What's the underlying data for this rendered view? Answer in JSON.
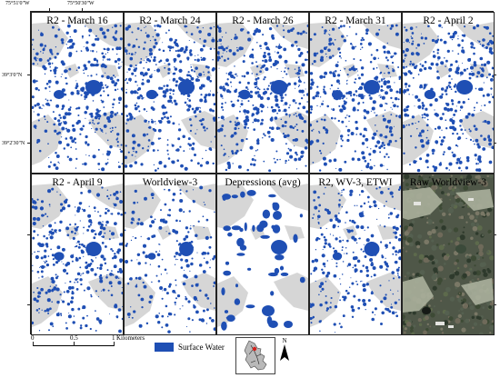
{
  "coordinates": {
    "top": [
      "75°51'0\"W",
      "75°50'30\"W"
    ],
    "left": [
      "39°3'0\"N",
      "39°2'30\"N"
    ]
  },
  "panels": [
    {
      "title": "R2 - March 16",
      "kind": "water",
      "density": 1.0
    },
    {
      "title": "R2 - March 24",
      "kind": "water",
      "density": 1.05
    },
    {
      "title": "R2 - March 26",
      "kind": "water",
      "density": 1.1
    },
    {
      "title": "R2 - March 31",
      "kind": "water",
      "density": 1.0
    },
    {
      "title": "R2 - April 2",
      "kind": "water",
      "density": 1.05
    },
    {
      "title": "R2 - April 9",
      "kind": "water",
      "density": 0.9
    },
    {
      "title": "Worldview-3",
      "kind": "water",
      "density": 0.6
    },
    {
      "title": "Depressions (avg)",
      "kind": "depressions",
      "density": 0.4
    },
    {
      "title": "R2, WV-3, ETWI",
      "kind": "water",
      "density": 0.8
    },
    {
      "title": "Raw Worldview-3",
      "kind": "imagery",
      "density": 0
    }
  ],
  "legend": {
    "scale_ticks": [
      "0",
      "0.5",
      "1"
    ],
    "scale_unit": "Kilometers",
    "surface_water_label": "Surface Water",
    "north_label": "N"
  },
  "colors": {
    "water": "#1f4fb4",
    "dry": "#d6d6d6",
    "background": "#ffffff"
  }
}
